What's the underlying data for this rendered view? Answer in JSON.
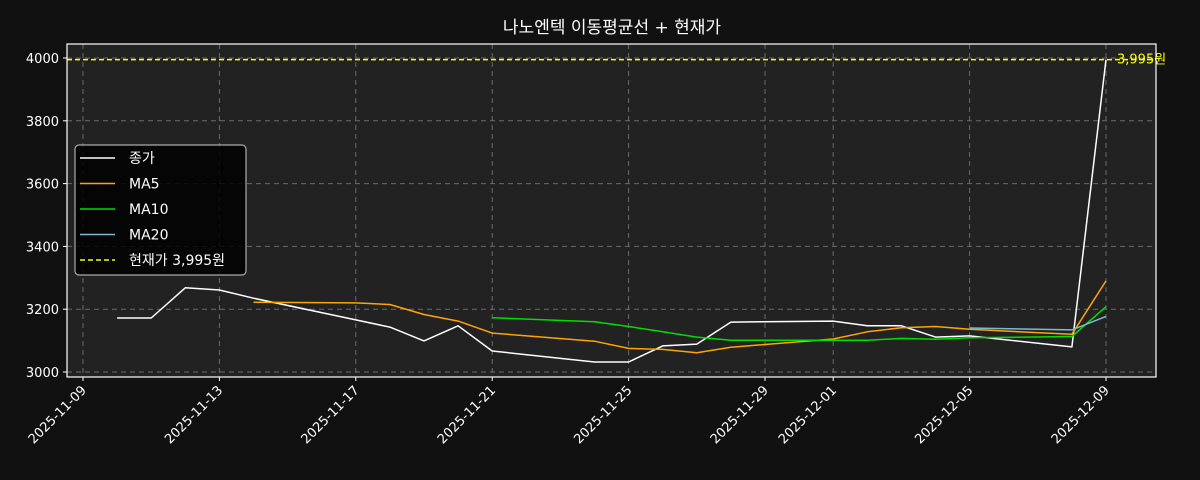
{
  "chart_data": {
    "type": "line",
    "title": "나노엔텍 이동평균선 + 현재가",
    "xlabel": "",
    "ylabel": "",
    "ylim": [
      2985,
      4045
    ],
    "xlim": [
      "2025-11-09",
      "2025-12-10"
    ],
    "grid": true,
    "legend_position": "center left",
    "background": "#222222",
    "figure_background": "#111111",
    "y_ticks": [
      3000,
      3200,
      3400,
      3600,
      3800,
      4000
    ],
    "x_ticks": [
      "2025-11-09",
      "2025-11-13",
      "2025-11-17",
      "2025-11-21",
      "2025-11-25",
      "2025-11-29",
      "2025-12-01",
      "2025-12-05",
      "2025-12-09"
    ],
    "x": [
      "2025-11-10",
      "2025-11-11",
      "2025-11-12",
      "2025-11-13",
      "2025-11-14",
      "2025-11-17",
      "2025-11-18",
      "2025-11-19",
      "2025-11-20",
      "2025-11-21",
      "2025-11-24",
      "2025-11-25",
      "2025-11-26",
      "2025-11-27",
      "2025-11-28",
      "2025-12-01",
      "2025-12-02",
      "2025-12-03",
      "2025-12-04",
      "2025-12-05",
      "2025-12-08",
      "2025-12-09"
    ],
    "series": [
      {
        "name": "종가",
        "color": "#ffffff",
        "dash": false,
        "values": [
          3172,
          3172,
          3268,
          3261,
          3235,
          3166,
          3143,
          3099,
          3147,
          3067,
          3032,
          3032,
          3083,
          3089,
          3159,
          3162,
          3147,
          3147,
          3111,
          3115,
          3080,
          3995
        ]
      },
      {
        "name": "MA5",
        "color": "#ffa500",
        "dash": false,
        "values": [
          null,
          null,
          null,
          null,
          3222,
          3220,
          3215,
          3183,
          3162,
          3124,
          3098,
          3075,
          3072,
          3061,
          3079,
          3105,
          3128,
          3141,
          3145,
          3136,
          3120,
          3290
        ]
      },
      {
        "name": "MA10",
        "color": "#00dd00",
        "dash": false,
        "values": [
          null,
          null,
          null,
          null,
          null,
          null,
          null,
          null,
          null,
          3173,
          3160,
          3145,
          3128,
          3111,
          3101,
          3101,
          3101,
          3107,
          3104,
          3109,
          3113,
          3208
        ]
      },
      {
        "name": "MA20",
        "color": "#7fb8d0",
        "dash": false,
        "values": [
          null,
          null,
          null,
          null,
          null,
          null,
          null,
          null,
          null,
          null,
          null,
          null,
          null,
          null,
          null,
          null,
          null,
          null,
          null,
          3140,
          3134,
          3177
        ]
      },
      {
        "name": "현재가 3,995원",
        "color": "#ffff00",
        "dash": true,
        "type": "hline",
        "value": 3995
      }
    ],
    "annotations": [
      {
        "text": "3,995원",
        "x": "2025-12-09",
        "y": 3995,
        "color": "#ffff00"
      }
    ]
  },
  "legend": {
    "items": [
      {
        "label": "종가",
        "color": "#ffffff"
      },
      {
        "label": "MA5",
        "color": "#ffa500"
      },
      {
        "label": "MA10",
        "color": "#00dd00"
      },
      {
        "label": "MA20",
        "color": "#7fb8d0"
      },
      {
        "label": "현재가 3,995원",
        "color": "#ffff00"
      }
    ]
  }
}
